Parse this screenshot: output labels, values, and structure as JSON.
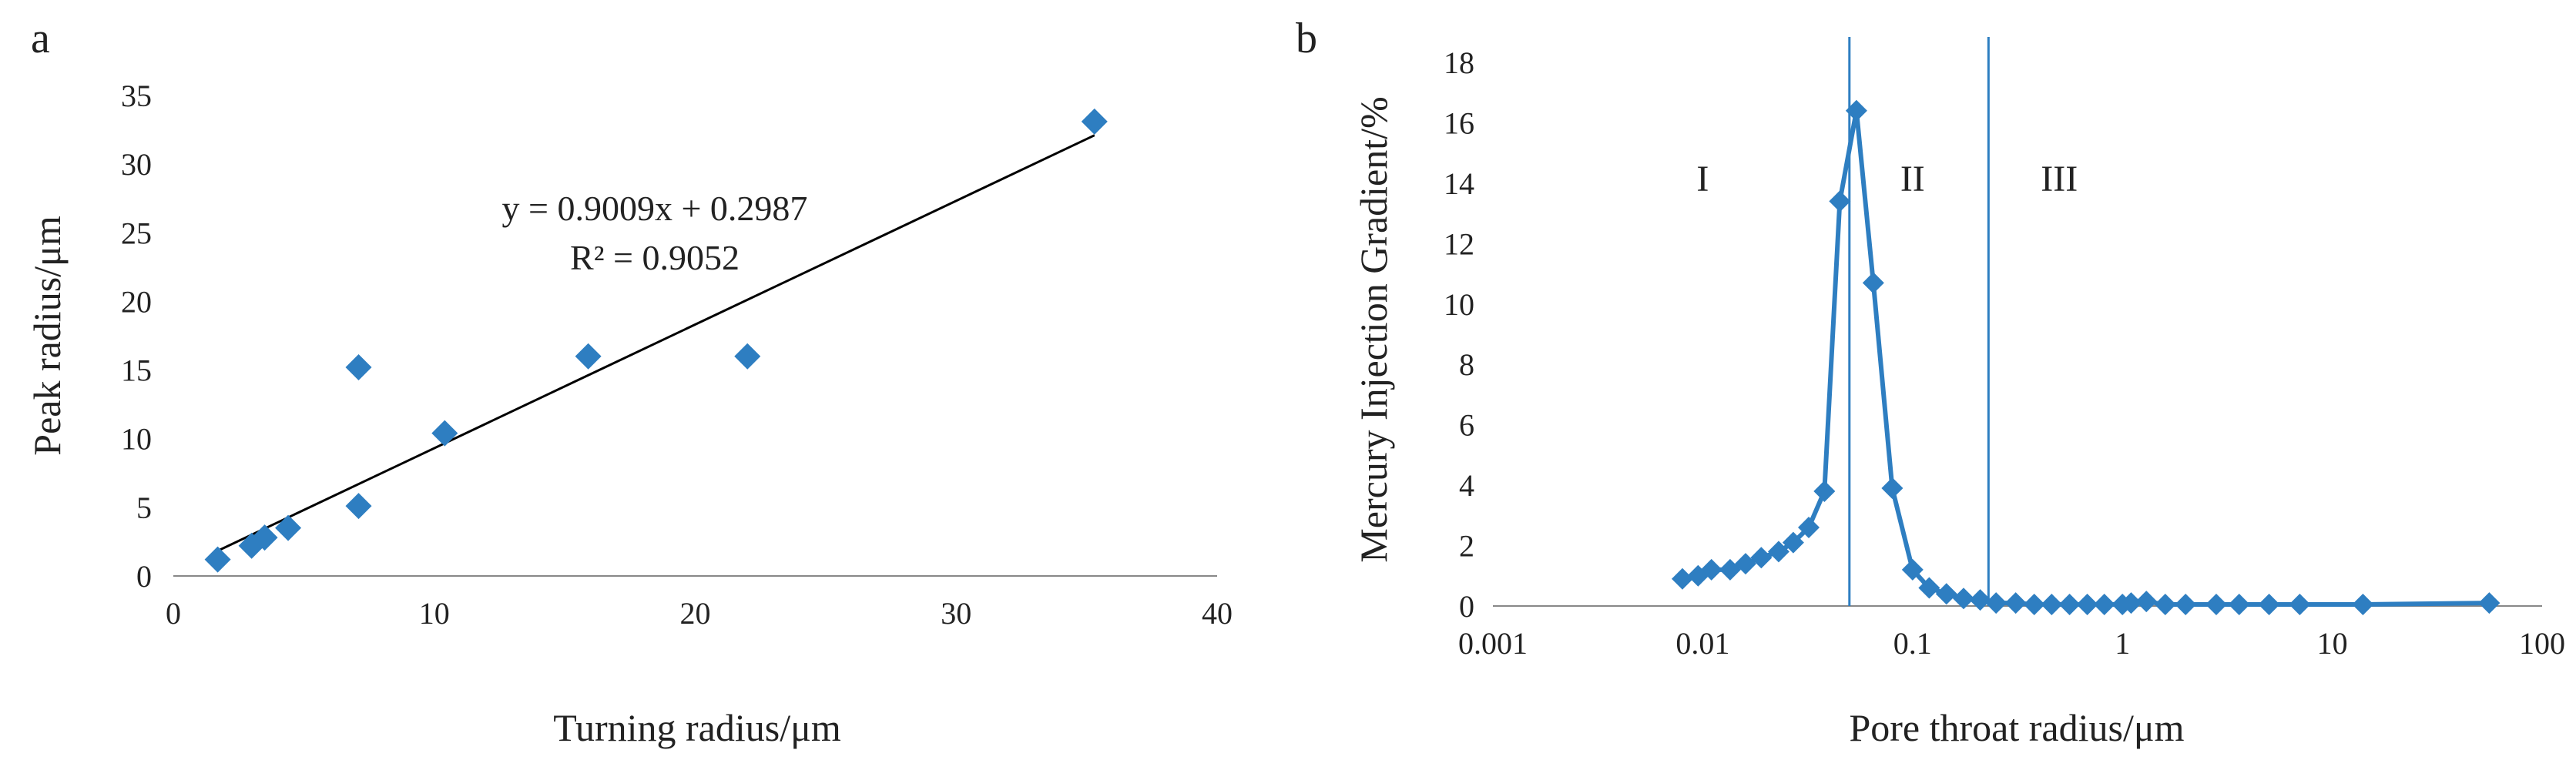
{
  "chart_data": [
    {
      "panel": "a",
      "type": "scatter",
      "xlabel": "Turning radius/μm",
      "ylabel": "Peak radius/μm",
      "xlim": [
        0,
        40
      ],
      "ylim": [
        0,
        35
      ],
      "xticks": [
        0,
        10,
        20,
        30,
        40
      ],
      "yticks": [
        0,
        5,
        10,
        15,
        20,
        25,
        30,
        35
      ],
      "grid": false,
      "marker_color": "#2E7EC1",
      "line_color": "#000000",
      "points": [
        {
          "x": 1.7,
          "y": 1.2
        },
        {
          "x": 3.0,
          "y": 2.2
        },
        {
          "x": 3.5,
          "y": 2.8
        },
        {
          "x": 4.4,
          "y": 3.5
        },
        {
          "x": 7.1,
          "y": 5.1
        },
        {
          "x": 7.1,
          "y": 15.2
        },
        {
          "x": 10.4,
          "y": 10.4
        },
        {
          "x": 15.9,
          "y": 16.0
        },
        {
          "x": 22.0,
          "y": 16.0
        },
        {
          "x": 35.3,
          "y": 33.1
        }
      ],
      "trendline": {
        "slope": 0.9009,
        "intercept": 0.2987,
        "x_range": [
          1.7,
          35.3
        ]
      },
      "annotations": [
        "y = 0.9009x + 0.2987",
        "R² = 0.9052"
      ]
    },
    {
      "panel": "b",
      "type": "line",
      "xscale": "log",
      "xlabel": "Pore throat radius/μm",
      "ylabel": "Mercury Injection Gradient/%",
      "xlim": [
        0.001,
        100
      ],
      "ylim": [
        0,
        18
      ],
      "xticks": [
        0.001,
        0.01,
        0.1,
        1,
        10,
        100
      ],
      "xtick_labels": [
        "0.001",
        "0.01",
        "0.1",
        "1",
        "10",
        "100"
      ],
      "yticks": [
        0,
        2,
        4,
        6,
        8,
        10,
        12,
        14,
        16,
        18
      ],
      "grid": false,
      "line_color": "#2E7EC1",
      "boundaries": [
        0.05,
        0.23
      ],
      "regions": [
        {
          "label": "I",
          "x": 0.01
        },
        {
          "label": "II",
          "x": 0.1
        },
        {
          "label": "III",
          "x": 0.5
        }
      ],
      "x": [
        0.008,
        0.0095,
        0.011,
        0.0135,
        0.016,
        0.019,
        0.023,
        0.027,
        0.032,
        0.038,
        0.045,
        0.054,
        0.065,
        0.08,
        0.1,
        0.12,
        0.145,
        0.175,
        0.21,
        0.25,
        0.31,
        0.38,
        0.46,
        0.56,
        0.68,
        0.82,
        1.0,
        1.1,
        1.3,
        1.6,
        2.0,
        2.8,
        3.6,
        5.0,
        7.0,
        14.0,
        56.0
      ],
      "y": [
        0.9,
        1.0,
        1.2,
        1.2,
        1.4,
        1.6,
        1.8,
        2.1,
        2.6,
        3.8,
        13.4,
        16.4,
        10.7,
        3.9,
        1.2,
        0.6,
        0.4,
        0.25,
        0.2,
        0.1,
        0.1,
        0.05,
        0.05,
        0.05,
        0.05,
        0.05,
        0.05,
        0.1,
        0.15,
        0.05,
        0.05,
        0.05,
        0.05,
        0.05,
        0.05,
        0.05,
        0.1
      ]
    }
  ]
}
